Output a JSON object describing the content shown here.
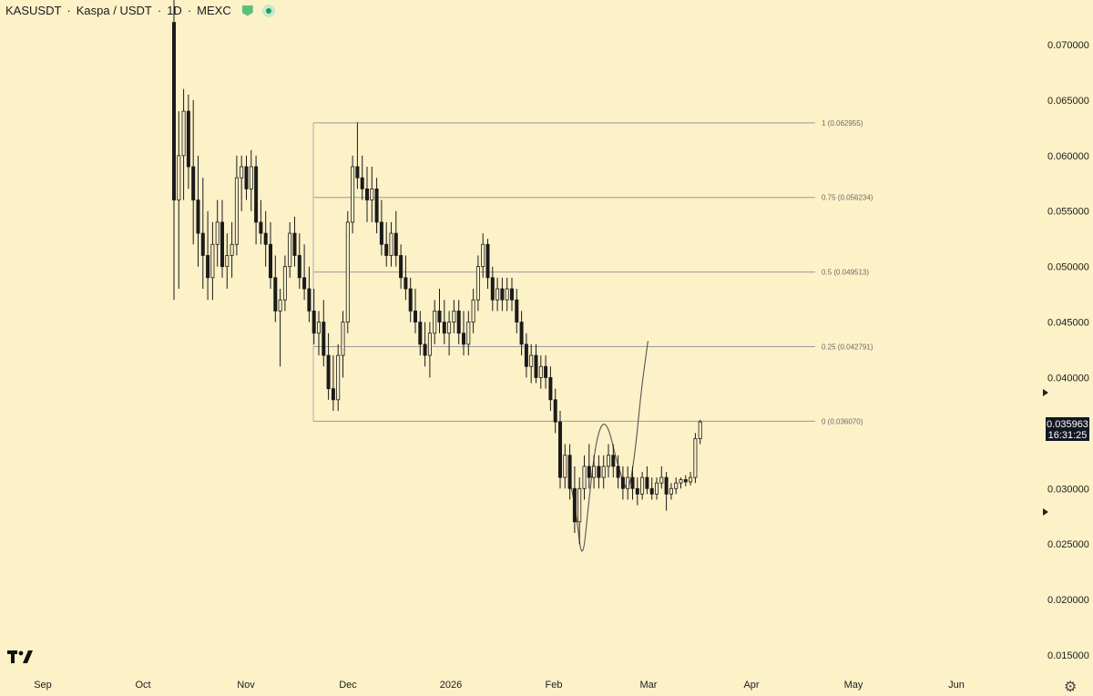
{
  "header": {
    "symbol": "KASUSDT",
    "description": "Kaspa / USDT",
    "interval": "1D",
    "exchange": "MEXC",
    "separator": "·"
  },
  "price_badge": {
    "price": "0.035963",
    "countdown": "16:31:25"
  },
  "colors": {
    "background": "#fdf1c8",
    "candle": "#1b1b1b",
    "fib_line": "#9a9a9a",
    "badge_bg": "#131722",
    "accent": "#1e9e5a"
  },
  "icons": {
    "logo": "tradingview-logo-icon",
    "settings": "gear-icon",
    "alert_marker": "triangle-right-icon"
  },
  "chart_data": {
    "type": "candlestick",
    "yaxis": {
      "ticks": [
        "0.070000",
        "0.065000",
        "0.060000",
        "0.055000",
        "0.050000",
        "0.045000",
        "0.040000",
        "0.030000",
        "0.025000",
        "0.020000",
        "0.015000"
      ],
      "range": [
        0.0135,
        0.0735
      ]
    },
    "xaxis": {
      "ticks": [
        "Sep",
        "Oct",
        "Nov",
        "Dec",
        "2026",
        "Feb",
        "Mar",
        "Apr",
        "May",
        "Jun"
      ]
    },
    "fibonacci": [
      {
        "label": "1 (0.062955)",
        "value": 0.062955
      },
      {
        "label": "0.75 (0.056234)",
        "value": 0.056234
      },
      {
        "label": "0.5 (0.049513)",
        "value": 0.049513
      },
      {
        "label": "0.25 (0.042791)",
        "value": 0.042791
      },
      {
        "label": "0 (0.036070)",
        "value": 0.03607
      }
    ],
    "last_price": 0.035963,
    "candles": [
      [
        0.072,
        0.076,
        0.047,
        0.056
      ],
      [
        0.056,
        0.064,
        0.048,
        0.06
      ],
      [
        0.06,
        0.066,
        0.056,
        0.064
      ],
      [
        0.064,
        0.0655,
        0.057,
        0.059
      ],
      [
        0.059,
        0.065,
        0.052,
        0.056
      ],
      [
        0.056,
        0.06,
        0.05,
        0.053
      ],
      [
        0.053,
        0.058,
        0.048,
        0.051
      ],
      [
        0.051,
        0.055,
        0.047,
        0.049
      ],
      [
        0.049,
        0.054,
        0.047,
        0.052
      ],
      [
        0.052,
        0.056,
        0.05,
        0.054
      ],
      [
        0.054,
        0.056,
        0.049,
        0.05
      ],
      [
        0.05,
        0.053,
        0.048,
        0.051
      ],
      [
        0.051,
        0.054,
        0.049,
        0.052
      ],
      [
        0.052,
        0.06,
        0.051,
        0.058
      ],
      [
        0.058,
        0.06,
        0.055,
        0.059
      ],
      [
        0.059,
        0.06,
        0.056,
        0.057
      ],
      [
        0.057,
        0.0605,
        0.055,
        0.059
      ],
      [
        0.059,
        0.06,
        0.052,
        0.054
      ],
      [
        0.054,
        0.056,
        0.052,
        0.053
      ],
      [
        0.053,
        0.055,
        0.05,
        0.052
      ],
      [
        0.052,
        0.054,
        0.048,
        0.049
      ],
      [
        0.049,
        0.051,
        0.045,
        0.046
      ],
      [
        0.046,
        0.048,
        0.041,
        0.047
      ],
      [
        0.047,
        0.051,
        0.046,
        0.05
      ],
      [
        0.05,
        0.054,
        0.049,
        0.053
      ],
      [
        0.053,
        0.0545,
        0.05,
        0.051
      ],
      [
        0.051,
        0.053,
        0.048,
        0.049
      ],
      [
        0.049,
        0.052,
        0.047,
        0.048
      ],
      [
        0.048,
        0.05,
        0.045,
        0.046
      ],
      [
        0.046,
        0.048,
        0.043,
        0.044
      ],
      [
        0.044,
        0.046,
        0.042,
        0.045
      ],
      [
        0.045,
        0.047,
        0.041,
        0.042
      ],
      [
        0.042,
        0.044,
        0.038,
        0.039
      ],
      [
        0.039,
        0.042,
        0.037,
        0.038
      ],
      [
        0.038,
        0.043,
        0.037,
        0.042
      ],
      [
        0.042,
        0.046,
        0.04,
        0.045
      ],
      [
        0.045,
        0.055,
        0.044,
        0.054
      ],
      [
        0.054,
        0.06,
        0.053,
        0.059
      ],
      [
        0.059,
        0.063,
        0.057,
        0.058
      ],
      [
        0.058,
        0.06,
        0.056,
        0.057
      ],
      [
        0.057,
        0.059,
        0.054,
        0.056
      ],
      [
        0.056,
        0.059,
        0.054,
        0.057
      ],
      [
        0.057,
        0.058,
        0.053,
        0.054
      ],
      [
        0.054,
        0.056,
        0.051,
        0.052
      ],
      [
        0.052,
        0.054,
        0.05,
        0.051
      ],
      [
        0.051,
        0.054,
        0.05,
        0.053
      ],
      [
        0.053,
        0.055,
        0.05,
        0.051
      ],
      [
        0.051,
        0.052,
        0.048,
        0.049
      ],
      [
        0.049,
        0.051,
        0.047,
        0.048
      ],
      [
        0.048,
        0.049,
        0.045,
        0.046
      ],
      [
        0.046,
        0.048,
        0.044,
        0.045
      ],
      [
        0.045,
        0.046,
        0.042,
        0.043
      ],
      [
        0.043,
        0.045,
        0.041,
        0.042
      ],
      [
        0.042,
        0.045,
        0.04,
        0.044
      ],
      [
        0.044,
        0.047,
        0.043,
        0.046
      ],
      [
        0.046,
        0.048,
        0.044,
        0.045
      ],
      [
        0.045,
        0.047,
        0.043,
        0.044
      ],
      [
        0.044,
        0.046,
        0.042,
        0.045
      ],
      [
        0.045,
        0.047,
        0.044,
        0.046
      ],
      [
        0.046,
        0.047,
        0.043,
        0.044
      ],
      [
        0.044,
        0.046,
        0.042,
        0.043
      ],
      [
        0.043,
        0.046,
        0.042,
        0.045
      ],
      [
        0.045,
        0.048,
        0.044,
        0.047
      ],
      [
        0.047,
        0.051,
        0.046,
        0.05
      ],
      [
        0.05,
        0.053,
        0.049,
        0.052
      ],
      [
        0.052,
        0.0525,
        0.048,
        0.049
      ],
      [
        0.049,
        0.05,
        0.046,
        0.047
      ],
      [
        0.047,
        0.049,
        0.046,
        0.048
      ],
      [
        0.048,
        0.049,
        0.046,
        0.047
      ],
      [
        0.047,
        0.049,
        0.046,
        0.048
      ],
      [
        0.048,
        0.049,
        0.046,
        0.047
      ],
      [
        0.047,
        0.048,
        0.044,
        0.045
      ],
      [
        0.045,
        0.046,
        0.042,
        0.043
      ],
      [
        0.043,
        0.044,
        0.04,
        0.041
      ],
      [
        0.041,
        0.043,
        0.0395,
        0.042
      ],
      [
        0.042,
        0.043,
        0.0395,
        0.04
      ],
      [
        0.04,
        0.042,
        0.039,
        0.041
      ],
      [
        0.041,
        0.042,
        0.039,
        0.04
      ],
      [
        0.04,
        0.041,
        0.037,
        0.038
      ],
      [
        0.038,
        0.039,
        0.035,
        0.036
      ],
      [
        0.036,
        0.037,
        0.03,
        0.031
      ],
      [
        0.031,
        0.034,
        0.03,
        0.033
      ],
      [
        0.033,
        0.034,
        0.029,
        0.03
      ],
      [
        0.03,
        0.032,
        0.026,
        0.027
      ],
      [
        0.027,
        0.031,
        0.025,
        0.03
      ],
      [
        0.03,
        0.033,
        0.029,
        0.032
      ],
      [
        0.032,
        0.034,
        0.03,
        0.031
      ],
      [
        0.031,
        0.033,
        0.03,
        0.032
      ],
      [
        0.032,
        0.033,
        0.03,
        0.031
      ],
      [
        0.031,
        0.033,
        0.03,
        0.032
      ],
      [
        0.032,
        0.034,
        0.031,
        0.033
      ],
      [
        0.033,
        0.034,
        0.031,
        0.032
      ],
      [
        0.032,
        0.033,
        0.03,
        0.031
      ],
      [
        0.031,
        0.032,
        0.029,
        0.03
      ],
      [
        0.03,
        0.032,
        0.029,
        0.031
      ],
      [
        0.031,
        0.032,
        0.029,
        0.03
      ],
      [
        0.03,
        0.031,
        0.0285,
        0.0295
      ],
      [
        0.0295,
        0.0315,
        0.029,
        0.031
      ],
      [
        0.031,
        0.032,
        0.0295,
        0.03
      ],
      [
        0.03,
        0.031,
        0.029,
        0.0295
      ],
      [
        0.0295,
        0.031,
        0.029,
        0.0305
      ],
      [
        0.0305,
        0.032,
        0.03,
        0.031
      ],
      [
        0.031,
        0.0315,
        0.028,
        0.0295
      ],
      [
        0.0295,
        0.0305,
        0.029,
        0.03
      ],
      [
        0.03,
        0.031,
        0.0295,
        0.0305
      ],
      [
        0.0305,
        0.031,
        0.03,
        0.0308
      ],
      [
        0.0308,
        0.0312,
        0.0302,
        0.0306
      ],
      [
        0.0306,
        0.0315,
        0.0303,
        0.031
      ],
      [
        0.031,
        0.035,
        0.0305,
        0.0345
      ],
      [
        0.0345,
        0.0362,
        0.034,
        0.036
      ]
    ],
    "projection": [
      [
        0.03,
        0.031
      ],
      [
        0.0305,
        0.028
      ],
      [
        0.0315,
        0.023
      ],
      [
        0.0325,
        0.029
      ],
      [
        0.0335,
        0.034
      ],
      [
        0.0345,
        0.036
      ],
      [
        0.034,
        0.0355
      ],
      [
        0.033,
        0.033
      ],
      [
        0.032,
        0.031
      ],
      [
        0.031,
        0.0295
      ],
      [
        0.03,
        0.033
      ],
      [
        0.029,
        0.039
      ],
      [
        0.0285,
        0.0433
      ]
    ]
  }
}
